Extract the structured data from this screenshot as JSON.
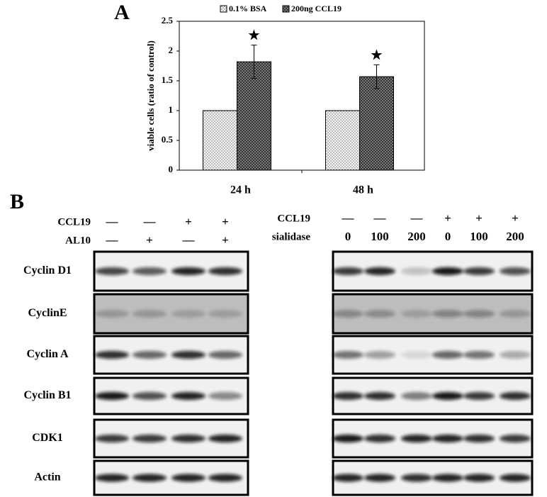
{
  "chart_data": {
    "type": "bar",
    "panel_label": "A",
    "y_label": "viable cells (ratio of control)",
    "categories": [
      "24 h",
      "48 h"
    ],
    "series": [
      {
        "name": "0.1% BSA",
        "color": "#f4f4f4",
        "values": [
          1,
          1
        ]
      },
      {
        "name": "200ng CCL19",
        "color": "#8a8a8a",
        "values": [
          1.82,
          1.57
        ],
        "errors": [
          0.28,
          0.2
        ]
      }
    ],
    "annotations": [
      "★",
      "★"
    ],
    "ylim": [
      0,
      2.5
    ],
    "yticks": [
      0,
      0.5,
      1,
      1.5,
      2,
      2.5
    ]
  },
  "blots": {
    "panel_label": "B",
    "rows": [
      "Cyclin D1",
      "CyclinE",
      "Cyclin A",
      "Cyclin B1",
      "CDK1",
      "Actin"
    ],
    "left": {
      "conditions": [
        {
          "label": "CCL19",
          "marks": [
            "—",
            "—",
            "+",
            "+"
          ]
        },
        {
          "label": "AL10",
          "marks": [
            "—",
            "+",
            "—",
            "+"
          ]
        }
      ]
    },
    "right": {
      "conditions": [
        {
          "label": "CCL19",
          "marks": [
            "—",
            "—",
            "—",
            "+",
            "+",
            "+"
          ]
        },
        {
          "label": "sialidase",
          "marks": [
            "0",
            "100",
            "200",
            "0",
            "100",
            "200"
          ]
        }
      ]
    }
  }
}
